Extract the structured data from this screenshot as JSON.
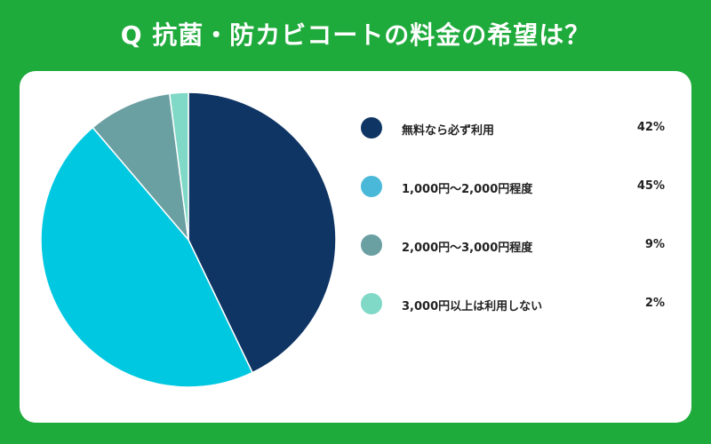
{
  "chart_data": {
    "type": "pie",
    "title": "Q 抗菌・防カビコートの料金の希望は？",
    "categories": [
      "無料なら必ず利用",
      "1,000円〜2,000円程度",
      "2,000円〜3,000円程度",
      "3,000円以上は利用しない"
    ],
    "values": [
      42,
      45,
      9,
      2
    ],
    "value_labels": [
      "42%",
      "45%",
      "9%",
      "2%"
    ],
    "colors": [
      "#0f3564",
      "#00c8e0",
      "#6ba0a3",
      "#7fd9c6"
    ],
    "legend_colors": [
      "#0f3564",
      "#4ab8d8",
      "#6ba0a3",
      "#7fd9c6"
    ],
    "legend_position": "right",
    "start_angle_deg": 0,
    "direction": "clockwise"
  }
}
